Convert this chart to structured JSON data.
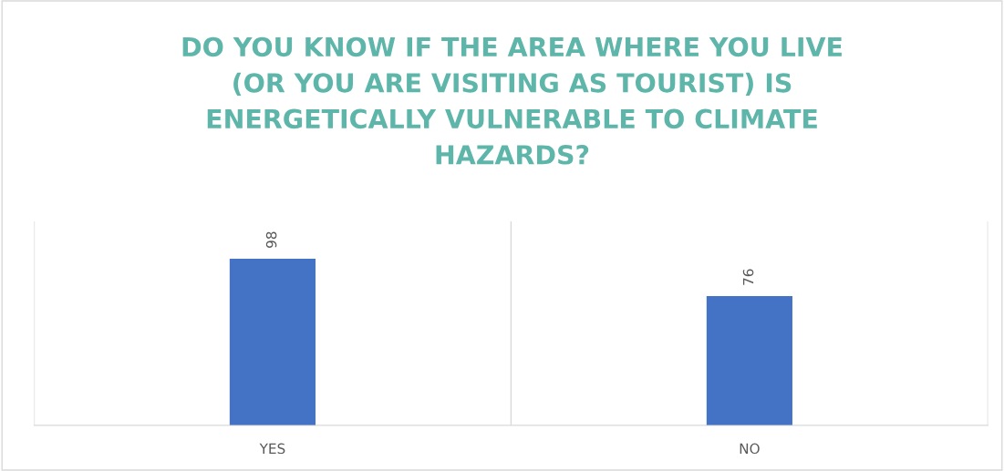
{
  "chart_data": {
    "type": "bar",
    "title": "DO YOU KNOW IF THE AREA WHERE YOU LIVE\n(OR YOU ARE VISITING AS TOURIST) IS\nENERGETICALLY VULNERABLE TO CLIMATE\nHAZARDS?",
    "categories": [
      "YES",
      "NO"
    ],
    "values": [
      98,
      76
    ],
    "color": "#4472c4",
    "ylim": [
      0,
      120
    ],
    "data_labels": true,
    "grid": "x",
    "tick_labels": "x"
  }
}
